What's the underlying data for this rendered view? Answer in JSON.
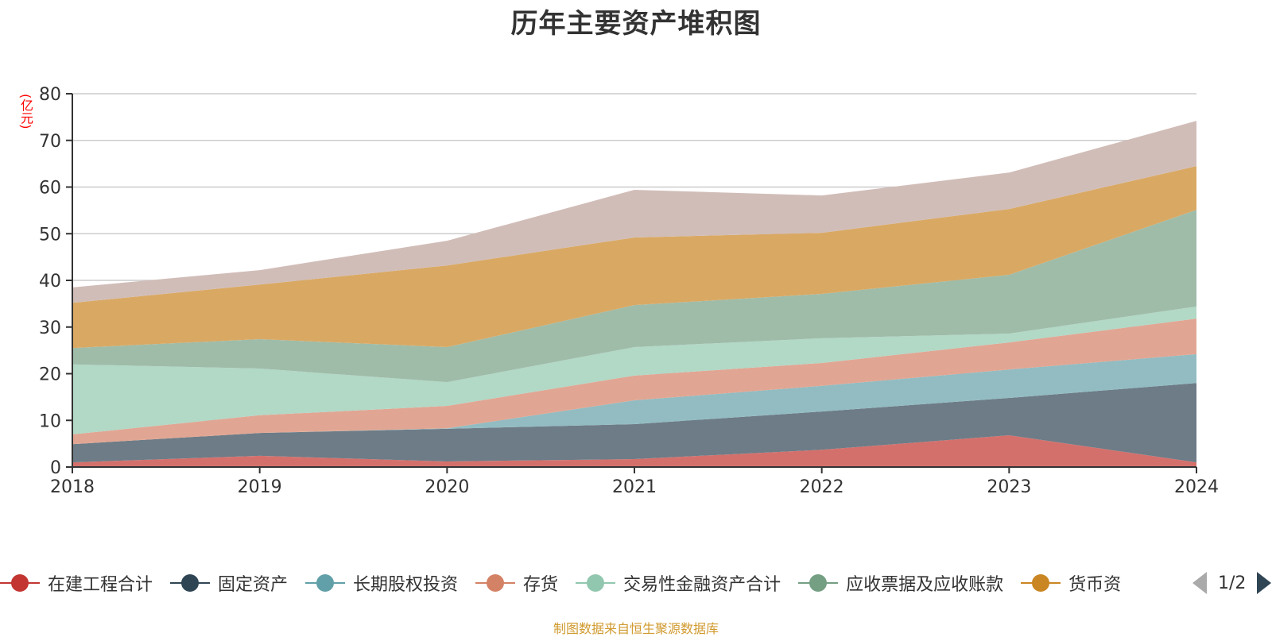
{
  "chart_data": {
    "type": "area",
    "stacked": true,
    "title": "历年主要资产堆积图",
    "ylabel": "(亿元)",
    "xlabel": "",
    "x": [
      "2018",
      "2019",
      "2020",
      "2021",
      "2022",
      "2023",
      "2024"
    ],
    "ylim": [
      0,
      80
    ],
    "yticks": [
      0,
      10,
      20,
      30,
      40,
      50,
      60,
      70,
      80
    ],
    "grid": true,
    "legend_position": "bottom",
    "series": [
      {
        "name": "在建工程合计",
        "color": "#c23531",
        "area_color": "#d4706c",
        "values": [
          1.0,
          2.4,
          1.2,
          1.7,
          3.7,
          6.8,
          1.0
        ]
      },
      {
        "name": "固定资产",
        "color": "#2f4554",
        "area_color": "#6d7c87",
        "values": [
          3.9,
          4.9,
          7.0,
          7.5,
          8.2,
          8.0,
          17.0
        ]
      },
      {
        "name": "长期股权投资",
        "color": "#61a0a8",
        "area_color": "#92bcc2",
        "values": [
          0.0,
          0.0,
          0.1,
          5.1,
          5.5,
          6.1,
          6.2
        ]
      },
      {
        "name": "存货",
        "color": "#d48265",
        "area_color": "#e1a693",
        "values": [
          2.1,
          3.8,
          4.8,
          5.3,
          4.9,
          5.8,
          7.6
        ]
      },
      {
        "name": "交易性金融资产合计",
        "color": "#91c7ae",
        "area_color": "#b2d8c6",
        "values": [
          15.0,
          10.0,
          5.1,
          6.1,
          5.3,
          1.9,
          2.6
        ]
      },
      {
        "name": "应收票据及应收账款",
        "color": "#749f83",
        "area_color": "#9fbca9",
        "values": [
          3.5,
          6.3,
          7.5,
          9.0,
          9.5,
          12.6,
          20.7
        ]
      },
      {
        "name": "货币资金",
        "color": "#ca8622",
        "area_color": "#d9a964",
        "values": [
          9.7,
          11.7,
          17.5,
          14.5,
          13.1,
          14.1,
          9.4
        ]
      },
      {
        "name": "",
        "color": "#bda29a",
        "area_color": "#d1bdb8",
        "values": [
          3.3,
          3.1,
          5.3,
          10.2,
          8.0,
          7.8,
          9.7
        ]
      }
    ]
  },
  "legend": {
    "items": [
      {
        "label": "在建工程合计",
        "color": "#c23531"
      },
      {
        "label": "固定资产",
        "color": "#2f4554"
      },
      {
        "label": "长期股权投资",
        "color": "#61a0a8"
      },
      {
        "label": "存货",
        "color": "#d48265"
      },
      {
        "label": "交易性金融资产合计",
        "color": "#91c7ae"
      },
      {
        "label": "应收票据及应收账款",
        "color": "#749f83"
      },
      {
        "label": "货币资",
        "color": "#ca8622"
      }
    ],
    "page": "1/2",
    "prev_icon": "triangle-left-icon",
    "next_icon": "triangle-right-icon"
  },
  "source": "制图数据来自恒生聚源数据库"
}
